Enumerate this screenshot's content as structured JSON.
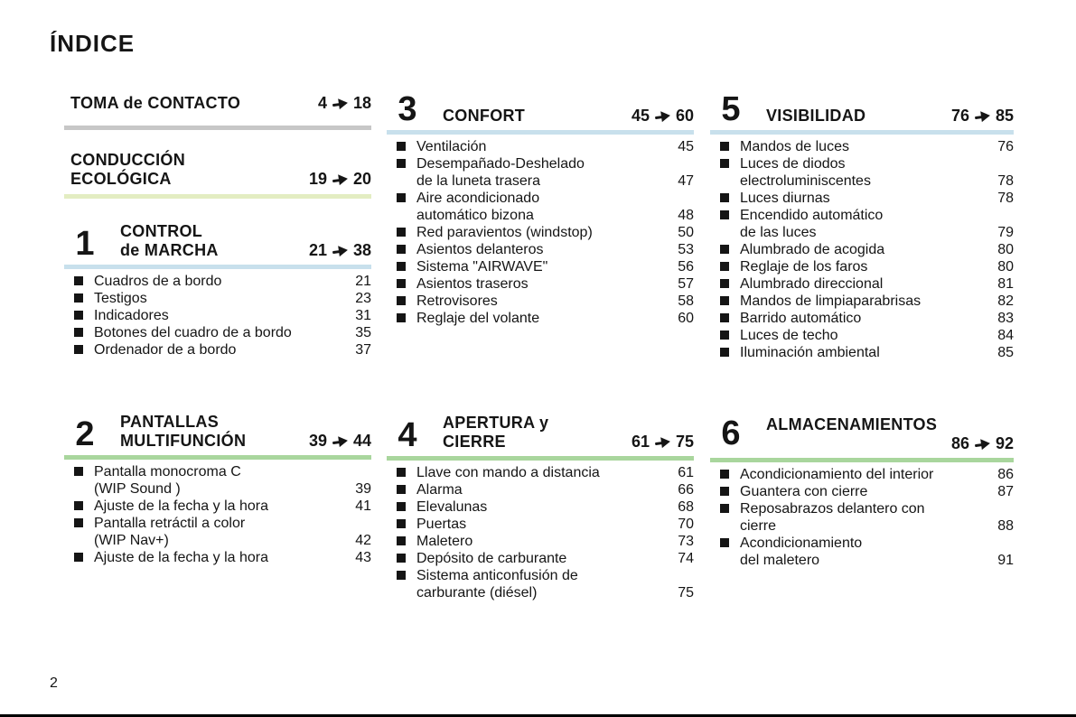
{
  "page": {
    "title": "ÍNDICE",
    "page_number": "2"
  },
  "colors": {
    "ink": "#151515",
    "bar_gray": "#c7c7c7",
    "bar_pale_green": "#e3edc2",
    "bar_blue": "#c8e0ec",
    "bar_green": "#a9d69d"
  },
  "icons": {
    "page_range_arrow": "arrow-right-icon",
    "item_bullet": "bullet-square-icon"
  },
  "columns": [
    {
      "sections": [
        {
          "number": null,
          "title_lines": [
            "TOMA de CONTACTO"
          ],
          "from": "4",
          "to": "18",
          "bar": "bar_gray",
          "items": []
        },
        {
          "number": null,
          "title_lines": [
            "CONDUCCIÓN",
            "ECOLÓGICA"
          ],
          "from": "19",
          "to": "20",
          "bar": "bar_pale_green",
          "items": []
        },
        {
          "number": "1",
          "title_lines": [
            "CONTROL",
            "de MARCHA"
          ],
          "from": "21",
          "to": "38",
          "bar": "bar_blue",
          "items": [
            {
              "lines": [
                "Cuadros de a bordo"
              ],
              "page": "21"
            },
            {
              "lines": [
                "Testigos"
              ],
              "page": "23"
            },
            {
              "lines": [
                "Indicadores"
              ],
              "page": "31"
            },
            {
              "lines": [
                "Botones del cuadro de a bordo"
              ],
              "page": "35"
            },
            {
              "lines": [
                "Ordenador de a bordo"
              ],
              "page": "37"
            }
          ]
        },
        {
          "number": "2",
          "title_lines": [
            "PANTALLAS",
            "MULTIFUNCIÓN"
          ],
          "from": "39",
          "to": "44",
          "bar": "bar_green",
          "items": [
            {
              "lines": [
                "Pantalla monocroma C",
                "(WIP Sound )"
              ],
              "page": "39"
            },
            {
              "lines": [
                "Ajuste de la fecha y la hora"
              ],
              "page": "41"
            },
            {
              "lines": [
                "Pantalla retráctil a color",
                "(WIP Nav+)"
              ],
              "page": "42"
            },
            {
              "lines": [
                "Ajuste de la fecha y la hora"
              ],
              "page": "43"
            }
          ]
        }
      ]
    },
    {
      "sections": [
        {
          "number": "3",
          "title_lines": [
            "CONFORT"
          ],
          "from": "45",
          "to": "60",
          "bar": "bar_blue",
          "items": [
            {
              "lines": [
                "Ventilación"
              ],
              "page": "45"
            },
            {
              "lines": [
                "Desempañado-Deshelado",
                "de la luneta trasera"
              ],
              "page": "47"
            },
            {
              "lines": [
                "Aire acondicionado",
                "automático bizona"
              ],
              "page": "48"
            },
            {
              "lines": [
                "Red paravientos (windstop)"
              ],
              "page": "50"
            },
            {
              "lines": [
                "Asientos delanteros"
              ],
              "page": "53"
            },
            {
              "lines": [
                "Sistema \"AIRWAVE\""
              ],
              "page": "56"
            },
            {
              "lines": [
                "Asientos traseros"
              ],
              "page": "57"
            },
            {
              "lines": [
                "Retrovisores"
              ],
              "page": "58"
            },
            {
              "lines": [
                "Reglaje del volante"
              ],
              "page": "60"
            }
          ]
        },
        {
          "number": "4",
          "title_lines": [
            "APERTURA y",
            "CIERRE"
          ],
          "from": "61",
          "to": "75",
          "bar": "bar_green",
          "items": [
            {
              "lines": [
                "Llave con mando a distancia"
              ],
              "page": "61"
            },
            {
              "lines": [
                "Alarma"
              ],
              "page": "66"
            },
            {
              "lines": [
                "Elevalunas"
              ],
              "page": "68"
            },
            {
              "lines": [
                "Puertas"
              ],
              "page": "70"
            },
            {
              "lines": [
                "Maletero"
              ],
              "page": "73"
            },
            {
              "lines": [
                "Depósito de carburante"
              ],
              "page": "74"
            },
            {
              "lines": [
                "Sistema anticonfusión de",
                "carburante (diésel)"
              ],
              "page": "75"
            }
          ]
        }
      ]
    },
    {
      "sections": [
        {
          "number": "5",
          "title_lines": [
            "VISIBILIDAD"
          ],
          "from": "76",
          "to": "85",
          "bar": "bar_blue",
          "items": [
            {
              "lines": [
                "Mandos de luces"
              ],
              "page": "76"
            },
            {
              "lines": [
                "Luces de diodos",
                "electroluminiscentes"
              ],
              "page": "78"
            },
            {
              "lines": [
                "Luces diurnas"
              ],
              "page": "78"
            },
            {
              "lines": [
                "Encendido automático",
                "de las luces"
              ],
              "page": "79"
            },
            {
              "lines": [
                "Alumbrado de acogida"
              ],
              "page": "80"
            },
            {
              "lines": [
                "Reglaje de los faros"
              ],
              "page": "80"
            },
            {
              "lines": [
                "Alumbrado direccional"
              ],
              "page": "81"
            },
            {
              "lines": [
                "Mandos de limpiaparabrisas"
              ],
              "page": "82"
            },
            {
              "lines": [
                "Barrido automático"
              ],
              "page": "83"
            },
            {
              "lines": [
                "Luces de techo"
              ],
              "page": "84"
            },
            {
              "lines": [
                "Iluminación ambiental"
              ],
              "page": "85"
            }
          ]
        },
        {
          "number": "6",
          "title_lines": [
            "ALMACENAMIENTOS"
          ],
          "from": "86",
          "to": "92",
          "bar": "bar_green",
          "stacked_range": true,
          "items": [
            {
              "lines": [
                "Acondicionamiento del interior"
              ],
              "page": "86"
            },
            {
              "lines": [
                "Guantera con cierre"
              ],
              "page": "87"
            },
            {
              "lines": [
                "Reposabrazos delantero con",
                "cierre"
              ],
              "page": "88"
            },
            {
              "lines": [
                "Acondicionamiento",
                "del maletero"
              ],
              "page": "91"
            }
          ]
        }
      ]
    }
  ]
}
